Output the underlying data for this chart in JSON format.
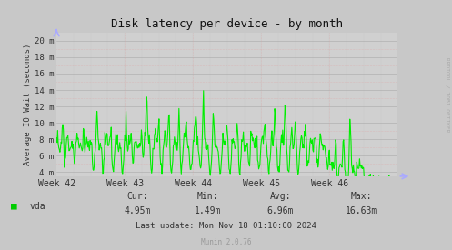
{
  "title": "Disk latency per device - by month",
  "ylabel": "Average IO Wait (seconds)",
  "background_color": "#c8c8c8",
  "plot_bg_color": "#d0d0d0",
  "line_color": "#00ee00",
  "line_width": 0.8,
  "yticks_labels": [
    "4 m",
    "6 m",
    "8 m",
    "10 m",
    "12 m",
    "14 m",
    "16 m",
    "18 m",
    "20 m"
  ],
  "yticks_values": [
    0.004,
    0.006,
    0.008,
    0.01,
    0.012,
    0.014,
    0.016,
    0.018,
    0.02
  ],
  "ylim": [
    0.0035,
    0.021
  ],
  "xlim": [
    0,
    1
  ],
  "xticks_positions": [
    0.0,
    0.2,
    0.4,
    0.6,
    0.8
  ],
  "xticks_labels": [
    "Week 42",
    "Week 43",
    "Week 44",
    "Week 45",
    "Week 46"
  ],
  "legend_label": "vda",
  "legend_color": "#00cc00",
  "stats_cur": "4.95m",
  "stats_min": "1.49m",
  "stats_avg": "6.96m",
  "stats_max": "16.63m",
  "last_update": "Last update: Mon Nov 18 01:10:00 2024",
  "munin_version": "Munin 2.0.76",
  "rrdtool_label": "RRDTOOL / TOBI OETIKER",
  "title_color": "#111111",
  "text_color": "#333333",
  "grid_major_color": "#aaaaaa",
  "grid_minor_color": "#ddaaaa",
  "arrow_color": "#aaaaff"
}
